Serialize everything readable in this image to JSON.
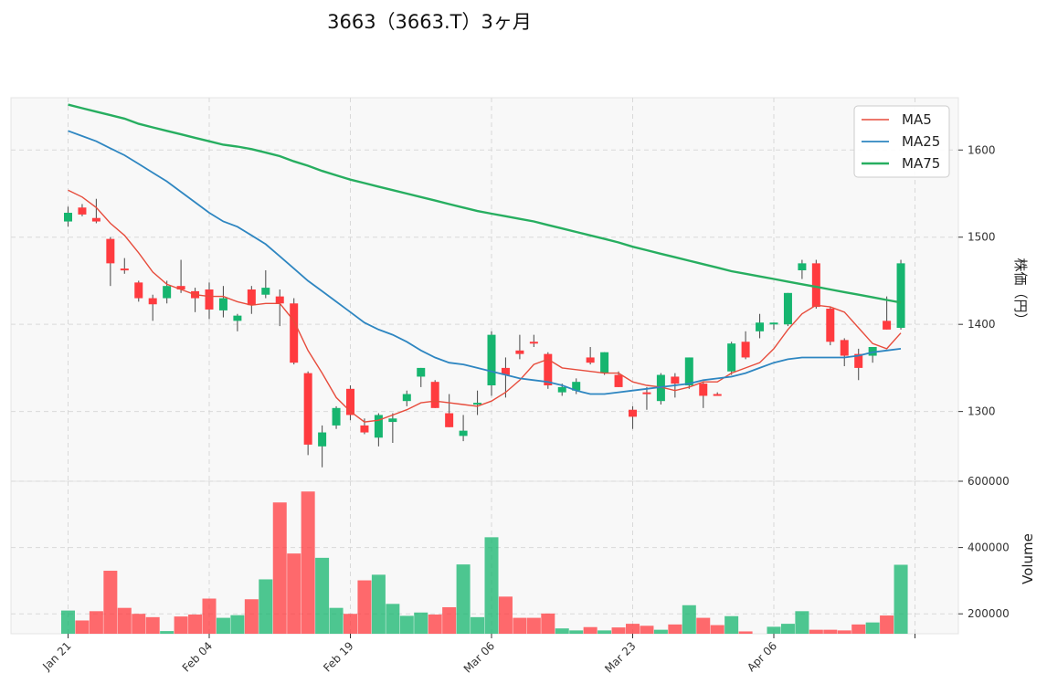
{
  "title": "3663（3663.T）3ヶ月",
  "colors": {
    "up": "#16b56f",
    "down": "#ff3b3f",
    "ma5": "#e74c3c",
    "ma25": "#2e86c1",
    "ma75": "#27ae60",
    "wick": "#555555"
  },
  "chart_data": [
    {
      "type": "candlestick",
      "ylabel": "株価（円）",
      "ylim": [
        1220,
        1660
      ],
      "yticks": [
        1300,
        1400,
        1500,
        1600
      ],
      "xtick_labels": [
        {
          "index": 0,
          "label": "Jan 21"
        },
        {
          "index": 10,
          "label": "Feb 04"
        },
        {
          "index": 20,
          "label": "Feb 19"
        },
        {
          "index": 30,
          "label": "Mar 06"
        },
        {
          "index": 40,
          "label": "Mar 23"
        },
        {
          "index": 50,
          "label": "Apr 06"
        },
        {
          "index": 60,
          "label": ""
        }
      ],
      "legend": {
        "position": "top-right",
        "entries": [
          "MA5",
          "MA25",
          "MA75"
        ]
      },
      "grid": true,
      "ohlc": [
        [
          1518,
          1535,
          1512,
          1528
        ],
        [
          1534,
          1538,
          1524,
          1526
        ],
        [
          1522,
          1544,
          1516,
          1518
        ],
        [
          1498,
          1500,
          1444,
          1470
        ],
        [
          1464,
          1476,
          1458,
          1463
        ],
        [
          1448,
          1450,
          1426,
          1430
        ],
        [
          1430,
          1434,
          1404,
          1423
        ],
        [
          1430,
          1450,
          1424,
          1444
        ],
        [
          1444,
          1474,
          1436,
          1440
        ],
        [
          1438,
          1442,
          1414,
          1430
        ],
        [
          1440,
          1448,
          1406,
          1417
        ],
        [
          1416,
          1444,
          1408,
          1430
        ],
        [
          1404,
          1412,
          1392,
          1410
        ],
        [
          1440,
          1444,
          1412,
          1422
        ],
        [
          1434,
          1462,
          1430,
          1442
        ],
        [
          1432,
          1440,
          1398,
          1424
        ],
        [
          1424,
          1430,
          1354,
          1356
        ],
        [
          1344,
          1346,
          1250,
          1262
        ],
        [
          1260,
          1284,
          1236,
          1276
        ],
        [
          1284,
          1306,
          1280,
          1304
        ],
        [
          1326,
          1330,
          1290,
          1296
        ],
        [
          1284,
          1292,
          1274,
          1276
        ],
        [
          1270,
          1298,
          1260,
          1296
        ],
        [
          1288,
          1298,
          1264,
          1292
        ],
        [
          1312,
          1324,
          1306,
          1320
        ],
        [
          1340,
          1350,
          1328,
          1350
        ],
        [
          1334,
          1336,
          1304,
          1304
        ],
        [
          1298,
          1320,
          1282,
          1282
        ],
        [
          1272,
          1296,
          1266,
          1278
        ],
        [
          1308,
          1324,
          1296,
          1310
        ],
        [
          1330,
          1392,
          1318,
          1388
        ],
        [
          1350,
          1362,
          1316,
          1342
        ],
        [
          1370,
          1388,
          1360,
          1366
        ],
        [
          1380,
          1388,
          1374,
          1378
        ],
        [
          1366,
          1368,
          1326,
          1330
        ],
        [
          1322,
          1332,
          1318,
          1328
        ],
        [
          1324,
          1338,
          1320,
          1334
        ],
        [
          1362,
          1374,
          1354,
          1356
        ],
        [
          1344,
          1368,
          1342,
          1368
        ],
        [
          1342,
          1346,
          1328,
          1328
        ],
        [
          1302,
          1306,
          1280,
          1294
        ],
        [
          1322,
          1328,
          1302,
          1320
        ],
        [
          1312,
          1344,
          1308,
          1342
        ],
        [
          1340,
          1344,
          1316,
          1332
        ],
        [
          1330,
          1362,
          1326,
          1362
        ],
        [
          1332,
          1334,
          1304,
          1318
        ],
        [
          1320,
          1322,
          1318,
          1318
        ],
        [
          1346,
          1380,
          1342,
          1378
        ],
        [
          1380,
          1392,
          1360,
          1362
        ],
        [
          1392,
          1412,
          1384,
          1402
        ],
        [
          1400,
          1402,
          1394,
          1402
        ],
        [
          1400,
          1436,
          1398,
          1436
        ],
        [
          1462,
          1474,
          1452,
          1470
        ],
        [
          1470,
          1474,
          1418,
          1420
        ],
        [
          1418,
          1420,
          1376,
          1380
        ],
        [
          1382,
          1384,
          1352,
          1364
        ],
        [
          1366,
          1372,
          1336,
          1350
        ],
        [
          1364,
          1374,
          1356,
          1374
        ],
        [
          1404,
          1432,
          1394,
          1394
        ],
        [
          1396,
          1474,
          1394,
          1470
        ]
      ],
      "series": [
        {
          "name": "MA5",
          "values": [
            1554,
            1546,
            1534,
            1516,
            1502,
            1482,
            1460,
            1446,
            1440,
            1434,
            1432,
            1432,
            1426,
            1422,
            1424,
            1424,
            1404,
            1370,
            1344,
            1316,
            1300,
            1288,
            1290,
            1296,
            1302,
            1310,
            1312,
            1310,
            1308,
            1306,
            1312,
            1322,
            1336,
            1354,
            1360,
            1350,
            1348,
            1346,
            1344,
            1344,
            1334,
            1330,
            1328,
            1324,
            1328,
            1334,
            1334,
            1344,
            1350,
            1356,
            1372,
            1394,
            1412,
            1422,
            1420,
            1414,
            1396,
            1378,
            1372,
            1390
          ]
        },
        {
          "name": "MA25",
          "values": [
            1622,
            1616,
            1610,
            1602,
            1594,
            1584,
            1574,
            1564,
            1552,
            1540,
            1528,
            1518,
            1512,
            1502,
            1492,
            1478,
            1464,
            1450,
            1438,
            1426,
            1414,
            1402,
            1394,
            1388,
            1380,
            1370,
            1362,
            1356,
            1354,
            1350,
            1346,
            1342,
            1338,
            1336,
            1334,
            1330,
            1324,
            1320,
            1320,
            1322,
            1324,
            1326,
            1328,
            1330,
            1332,
            1336,
            1338,
            1340,
            1344,
            1350,
            1356,
            1360,
            1362,
            1362,
            1362,
            1362,
            1364,
            1368,
            1370,
            1372
          ]
        },
        {
          "name": "MA75",
          "values": [
            1652,
            1648,
            1644,
            1640,
            1636,
            1630,
            1626,
            1622,
            1618,
            1614,
            1610,
            1606,
            1604,
            1601,
            1597,
            1593,
            1587,
            1582,
            1576,
            1571,
            1566,
            1562,
            1558,
            1554,
            1550,
            1546,
            1542,
            1538,
            1534,
            1530,
            1527,
            1524,
            1521,
            1518,
            1514,
            1510,
            1506,
            1502,
            1498,
            1494,
            1489,
            1485,
            1481,
            1477,
            1473,
            1469,
            1465,
            1461,
            1458,
            1455,
            1452,
            1449,
            1446,
            1443,
            1440,
            1437,
            1434,
            1431,
            1428,
            1425
          ]
        }
      ]
    },
    {
      "type": "bar",
      "ylabel": "Volume",
      "ylim": [
        140000,
        600000
      ],
      "yticks": [
        200000,
        400000,
        600000
      ],
      "values": [
        210000,
        180000,
        208000,
        330000,
        218000,
        200000,
        190000,
        148000,
        192000,
        198000,
        246000,
        188000,
        196000,
        244000,
        304000,
        536000,
        382000,
        569000,
        369000,
        218000,
        200000,
        301000,
        318000,
        230000,
        194000,
        204000,
        198000,
        220000,
        349000,
        190000,
        431000,
        252000,
        188000,
        188000,
        201000,
        156000,
        150000,
        160000,
        150000,
        159000,
        170000,
        164000,
        152000,
        168000,
        226000,
        188000,
        166000,
        193000,
        147000,
        137000,
        161000,
        170000,
        208000,
        152000,
        152000,
        150000,
        168000,
        174000,
        195000,
        348000
      ]
    }
  ]
}
